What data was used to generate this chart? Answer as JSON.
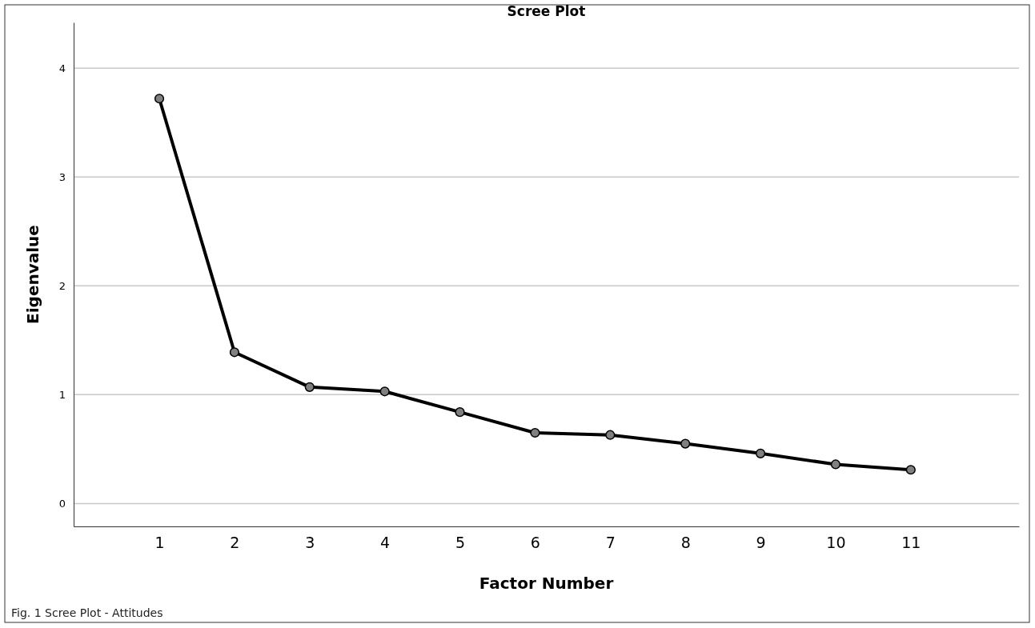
{
  "chart_data": {
    "type": "line",
    "title": "Scree Plot",
    "xlabel": "Factor Number",
    "ylabel": "Eigenvalue",
    "annotations": [
      "Fig. 1 Scree Plot - Attitudes"
    ],
    "x": [
      1,
      2,
      3,
      4,
      5,
      6,
      7,
      8,
      9,
      10,
      11
    ],
    "series": [
      {
        "color": "#000000",
        "values": [
          3.72,
          1.39,
          1.07,
          1.03,
          0.84,
          0.65,
          0.63,
          0.55,
          0.46,
          0.36,
          0.31
        ]
      }
    ],
    "xlim": [
      -0.14,
      12.44
    ],
    "xticks": [
      1,
      2,
      3,
      4,
      5,
      6,
      7,
      8,
      9,
      10,
      11
    ],
    "ylim": [
      -0.21,
      4.42
    ],
    "yticks": [
      0,
      1,
      2,
      3,
      4
    ],
    "grid": "y",
    "marker": "circle",
    "line_style": "solid"
  }
}
